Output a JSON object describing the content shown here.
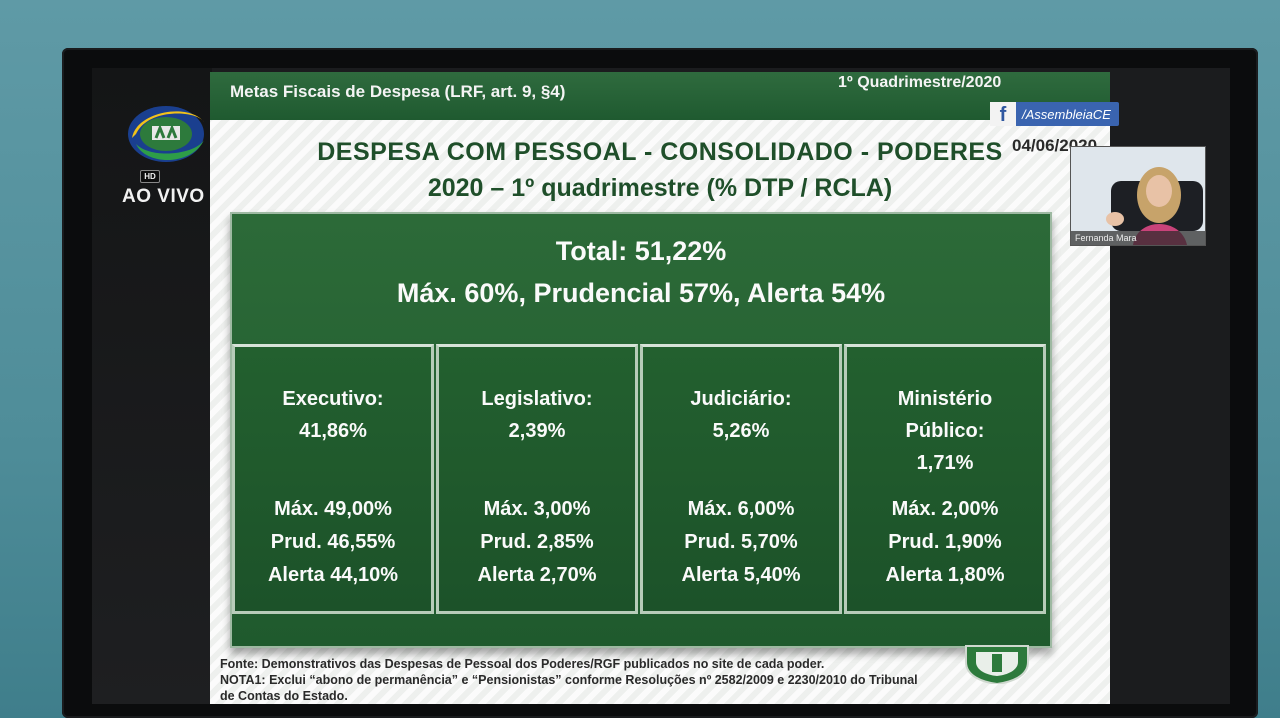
{
  "slide": {
    "header_left": "Metas Fiscais de Despesa (LRF, art. 9, §4)",
    "header_right": "1º Quadrimestre/2020",
    "title_line1": "DESPESA COM PESSOAL - CONSOLIDADO - PODERES",
    "title_line2": "2020 – 1º quadrimestre (% DTP / RCLA)",
    "date_stamp": "04/06/2020",
    "total": "Total: 51,22%",
    "limits": "Máx. 60%, Prudencial 57%, Alerta 54%",
    "cards": [
      {
        "name": "Executivo:",
        "value": "41,86%",
        "max": "Máx. 49,00%",
        "prud": "Prud. 46,55%",
        "alerta": "Alerta 44,10%"
      },
      {
        "name": "Legislativo:",
        "value": "2,39%",
        "max": "Máx. 3,00%",
        "prud": "Prud. 2,85%",
        "alerta": "Alerta 2,70%"
      },
      {
        "name": "Judiciário:",
        "value": "5,26%",
        "max": "Máx. 6,00%",
        "prud": "Prud. 5,70%",
        "alerta": "Alerta 5,40%"
      },
      {
        "name": "Ministério Público:",
        "value": "1,71%",
        "max": "Máx. 2,00%",
        "prud": "Prud. 1,90%",
        "alerta": "Alerta 1,80%"
      }
    ],
    "fonte_line1": "Fonte: Demonstrativos das Despesas de Pessoal dos Poderes/RGF publicados no site de cada poder.",
    "fonte_line2": "NOTA1: Exclui “abono de permanência” e “Pensionistas” conforme Resoluções nº 2582/2009 e 2230/2010 do Tribunal",
    "fonte_line3": "de Contas do Estado."
  },
  "broadcast": {
    "live_label": "AO VIVO",
    "hd_label": "HD",
    "facebook_handle": "/AssembleiaCE",
    "speaker_name": "Fernanda Mara",
    "icons": [
      "tv-logo-icon",
      "facebook-icon",
      "emblem-icon"
    ]
  },
  "colors": {
    "slide_green": "#1f5a2d",
    "header_green": "#2f6b3e",
    "title_green": "#1f4f2a",
    "facebook_blue": "#3a64b0"
  }
}
